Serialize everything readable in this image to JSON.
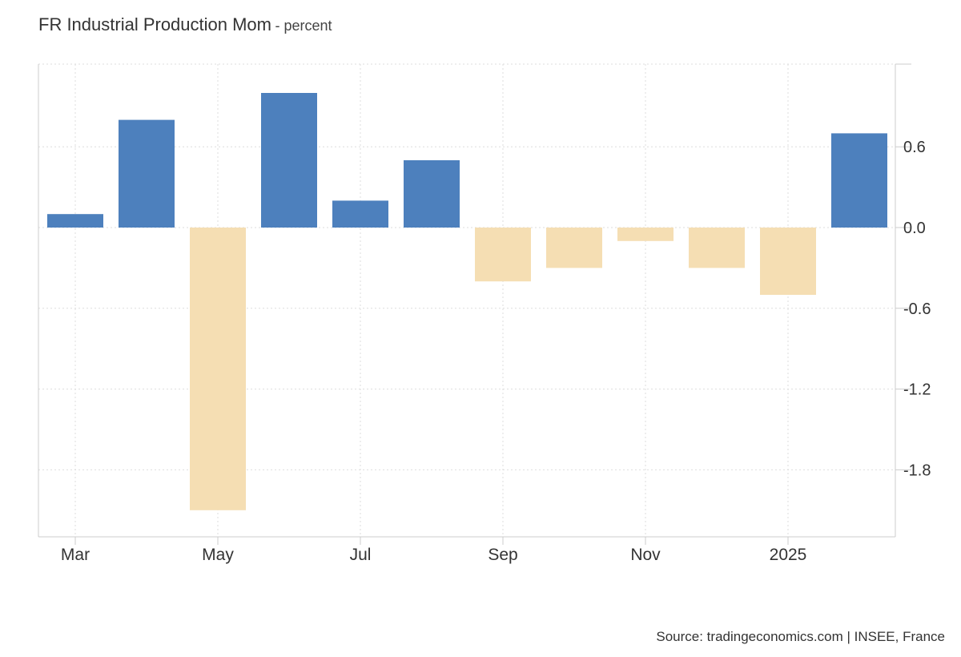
{
  "title": "FR Industrial Production Mom",
  "unit_label": "- percent",
  "source": "Source: tradingeconomics.com | INSEE, France",
  "chart_data": {
    "type": "bar",
    "title": "FR Industrial Production Mom",
    "xlabel": "",
    "ylabel": "percent",
    "categories": [
      "2024-03",
      "2024-04",
      "2024-05",
      "2024-06",
      "2024-07",
      "2024-08",
      "2024-09",
      "2024-10",
      "2024-11",
      "2024-12",
      "2025-01",
      "2025-02"
    ],
    "values": [
      0.1,
      0.8,
      -2.1,
      1.0,
      0.2,
      0.5,
      -0.4,
      -0.3,
      -0.1,
      -0.3,
      -0.5,
      0.7
    ],
    "ylim": [
      -2.3,
      1.2
    ],
    "yticks": [
      0.6,
      0.0,
      -0.6,
      -1.2,
      -1.8
    ],
    "ytick_labels": [
      "0.6",
      "0.0",
      "-0.6",
      "-1.2",
      "-1.8"
    ],
    "xticks": [
      "2024-03",
      "2024-05",
      "2024-07",
      "2024-09",
      "2024-11",
      "2025-01"
    ],
    "xtick_labels": [
      "Mar",
      "May",
      "Jul",
      "Sep",
      "Nov",
      "2025"
    ],
    "y_axis_side": "right",
    "grid": true,
    "legend": "none",
    "colors": {
      "positive": "#4d80bd",
      "negative": "#f5deb3"
    }
  }
}
